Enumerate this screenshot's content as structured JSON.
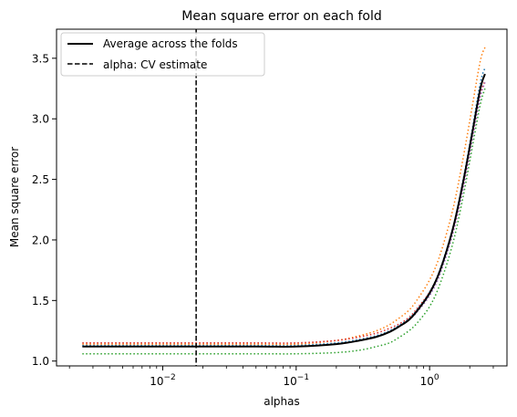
{
  "chart_data": {
    "type": "line",
    "title": "Mean square error on each fold",
    "xlabel": "alphas",
    "ylabel": "Mean square error",
    "xscale": "log",
    "xlim": [
      0.0016,
      3.8
    ],
    "ylim": [
      0.96,
      3.74
    ],
    "grid": false,
    "legend_position": "top-left",
    "x_ticks": [
      {
        "value": 0.01,
        "base": "10",
        "exp": "−2"
      },
      {
        "value": 0.1,
        "base": "10",
        "exp": "−1"
      },
      {
        "value": 1,
        "base": "10",
        "exp": "0"
      }
    ],
    "y_ticks": [
      {
        "value": 1.0,
        "label": "1.0"
      },
      {
        "value": 1.5,
        "label": "1.5"
      },
      {
        "value": 2.0,
        "label": "2.0"
      },
      {
        "value": 2.5,
        "label": "2.5"
      },
      {
        "value": 3.0,
        "label": "3.0"
      },
      {
        "value": 3.5,
        "label": "3.5"
      }
    ],
    "alpha_cv": 0.0178,
    "x": [
      0.0025,
      0.01,
      0.05,
      0.1,
      0.2,
      0.3,
      0.4,
      0.5,
      0.6,
      0.7,
      0.8,
      1.0,
      1.2,
      1.5,
      1.8,
      2.1,
      2.4,
      2.6
    ],
    "average": {
      "label": "Average across the folds",
      "color": "#000000",
      "values": [
        1.12,
        1.12,
        1.12,
        1.12,
        1.14,
        1.17,
        1.2,
        1.24,
        1.29,
        1.34,
        1.41,
        1.56,
        1.75,
        2.1,
        2.5,
        2.9,
        3.25,
        3.37
      ]
    },
    "cv_line": {
      "label": "alpha: CV estimate",
      "color": "#000000"
    },
    "folds": [
      {
        "color": "#1f77b4",
        "values": [
          1.13,
          1.13,
          1.13,
          1.13,
          1.15,
          1.18,
          1.21,
          1.25,
          1.3,
          1.35,
          1.42,
          1.57,
          1.76,
          2.11,
          2.52,
          2.93,
          3.3,
          3.42
        ]
      },
      {
        "color": "#ff7f0e",
        "values": [
          1.14,
          1.14,
          1.14,
          1.14,
          1.17,
          1.21,
          1.25,
          1.3,
          1.36,
          1.42,
          1.5,
          1.67,
          1.88,
          2.26,
          2.7,
          3.12,
          3.48,
          3.59
        ]
      },
      {
        "color": "#2ca02c",
        "values": [
          1.06,
          1.06,
          1.06,
          1.06,
          1.07,
          1.09,
          1.12,
          1.15,
          1.2,
          1.25,
          1.31,
          1.45,
          1.64,
          1.98,
          2.38,
          2.78,
          3.12,
          3.25
        ]
      },
      {
        "color": "#d62728",
        "values": [
          1.15,
          1.15,
          1.15,
          1.15,
          1.17,
          1.2,
          1.23,
          1.27,
          1.31,
          1.36,
          1.43,
          1.57,
          1.75,
          2.08,
          2.47,
          2.86,
          3.2,
          3.31
        ]
      },
      {
        "color": "#9467bd",
        "values": [
          1.12,
          1.12,
          1.12,
          1.12,
          1.14,
          1.17,
          1.2,
          1.24,
          1.29,
          1.34,
          1.4,
          1.54,
          1.72,
          2.06,
          2.44,
          2.84,
          3.18,
          3.3
        ]
      }
    ]
  }
}
